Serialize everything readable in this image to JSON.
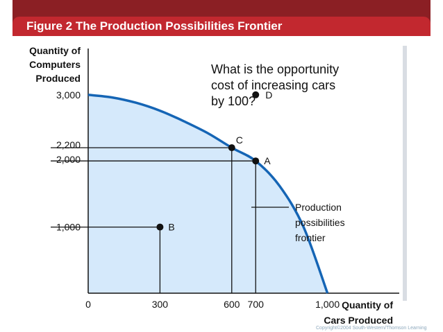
{
  "title": "Figure 2 The Production Possibilities Frontier",
  "colors": {
    "title_bar": "#c2282f",
    "curve": "#1565b5",
    "fill": "#d5e9fb",
    "panel": "#ffffff"
  },
  "chart_data": {
    "type": "area",
    "ylabel_lines": [
      "Quantity of",
      "Computers",
      "Produced"
    ],
    "xlabel_lines": [
      "Quantity of",
      "Cars Produced"
    ],
    "xlim": [
      0,
      1300
    ],
    "ylim": [
      0,
      3700
    ],
    "x_ticks": [
      {
        "value": 0,
        "label": "0"
      },
      {
        "value": 300,
        "label": "300"
      },
      {
        "value": 600,
        "label": "600"
      },
      {
        "value": 700,
        "label": "700"
      },
      {
        "value": 1000,
        "label": "1,000"
      }
    ],
    "y_ticks": [
      {
        "value": 1000,
        "label": "1,000"
      },
      {
        "value": 2000,
        "label": "2,000"
      },
      {
        "value": 2200,
        "label": "2,200"
      },
      {
        "value": 3000,
        "label": "3,000"
      }
    ],
    "frontier": {
      "name": "Production possibilities frontier",
      "label_lines": [
        "Production",
        "possibilities",
        "frontier"
      ],
      "points": [
        [
          0,
          3000
        ],
        [
          100,
          2960
        ],
        [
          200,
          2880
        ],
        [
          300,
          2760
        ],
        [
          400,
          2600
        ],
        [
          500,
          2420
        ],
        [
          600,
          2200
        ],
        [
          700,
          2000
        ],
        [
          800,
          1620
        ],
        [
          900,
          1000
        ],
        [
          1000,
          0
        ]
      ]
    },
    "points": [
      {
        "name": "A",
        "x": 700,
        "y": 2000
      },
      {
        "name": "B",
        "x": 300,
        "y": 1000
      },
      {
        "name": "C",
        "x": 600,
        "y": 2200
      },
      {
        "name": "D",
        "x": 700,
        "y": 3000
      }
    ],
    "annotation_lines": [
      "What is the opportunity",
      "cost of increasing cars",
      "by 100?"
    ]
  },
  "copyright": "Copyright©2004 South-Western/Thomson Learning"
}
